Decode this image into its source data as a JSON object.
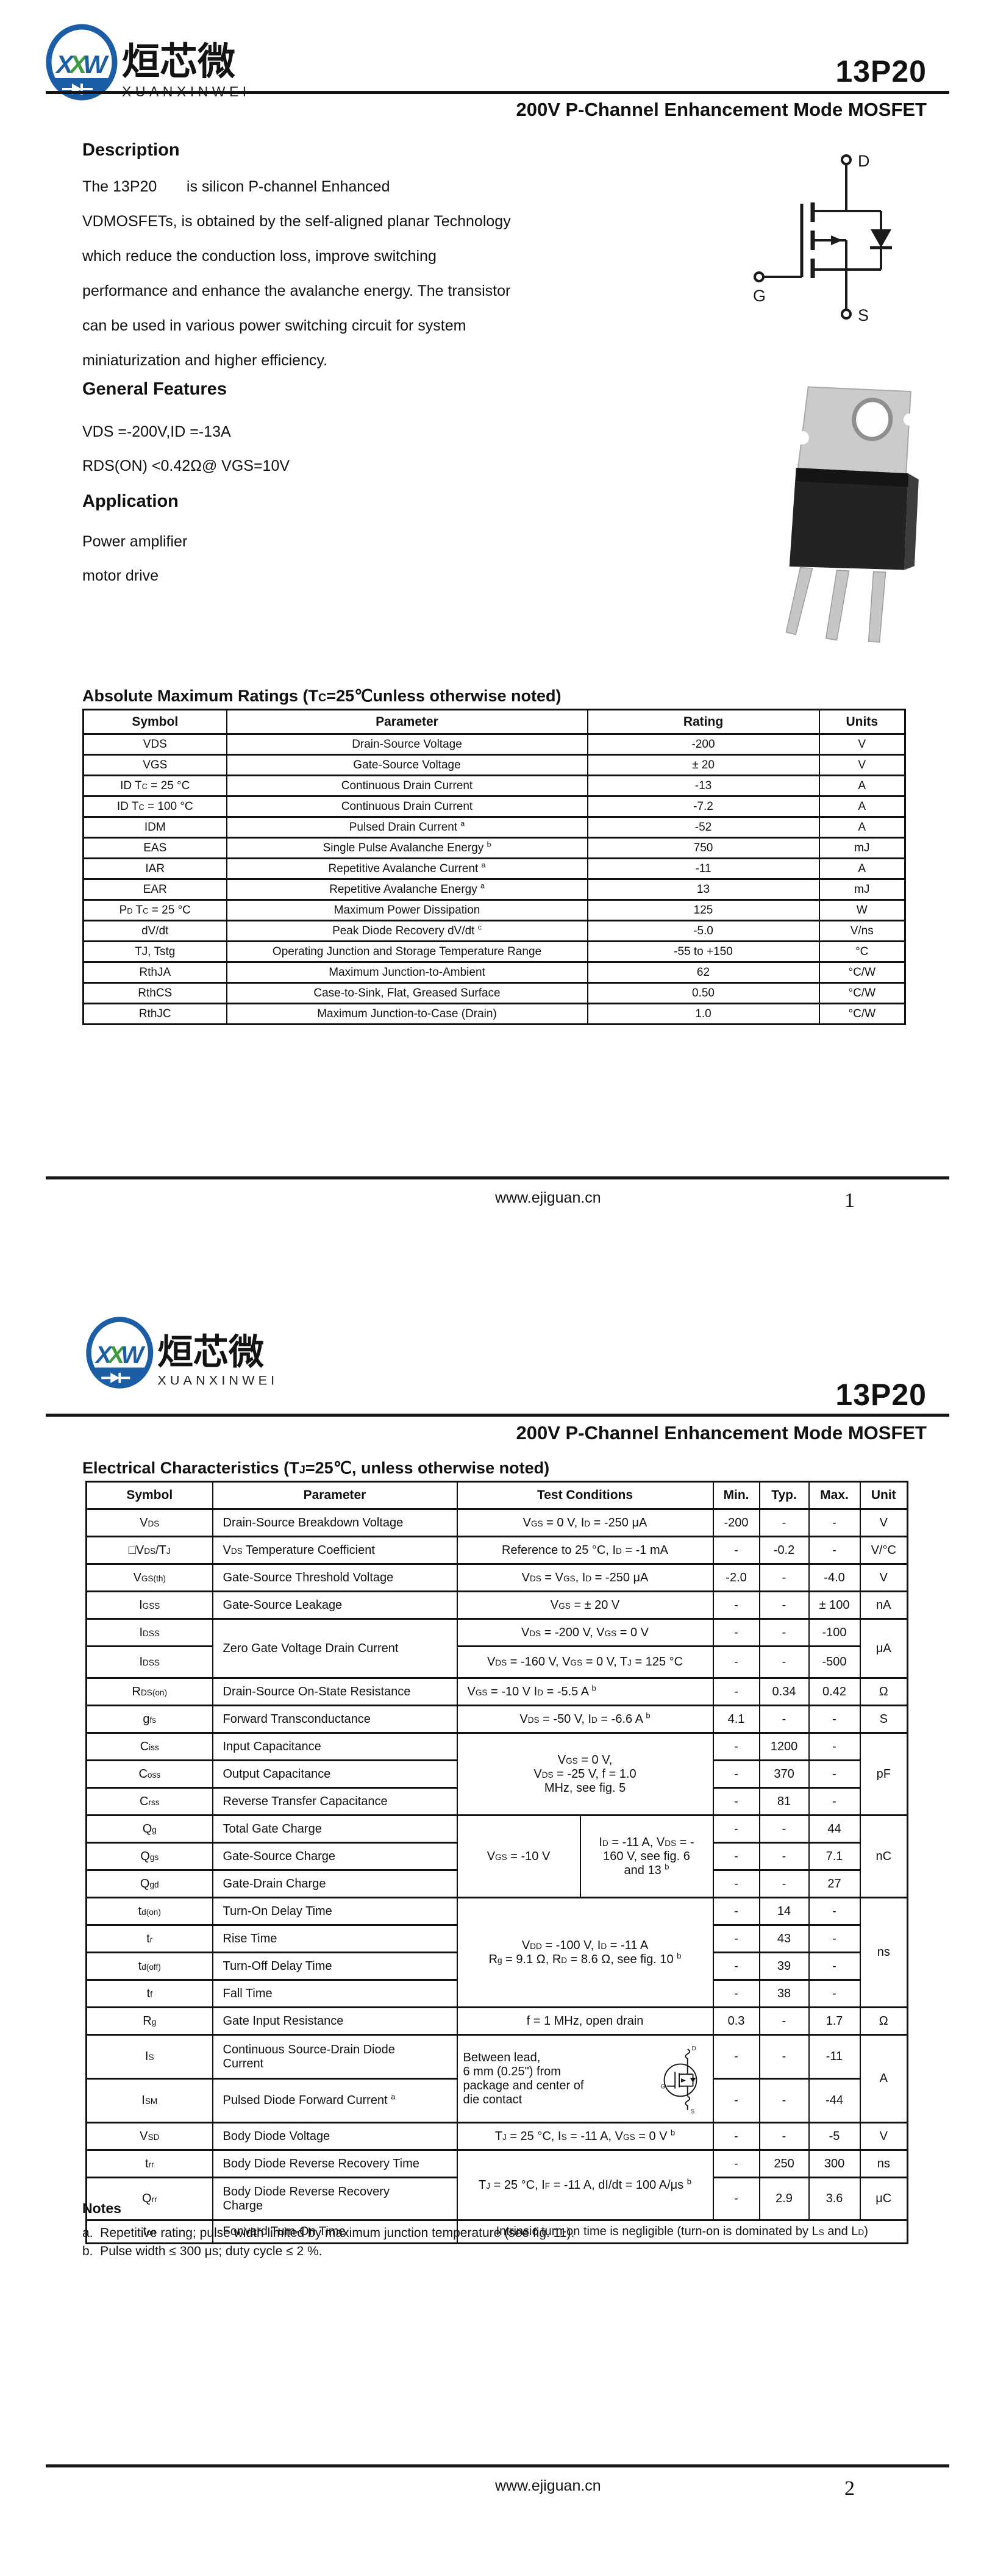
{
  "brand": {
    "m1": "X",
    "m2": "X",
    "m3": "W",
    "logo_cn": "烜芯微",
    "logo_en": "XUANXINWEI",
    "part": "13P20",
    "subtitle": "200V P-Channel Enhancement Mode MOSFET",
    "blue": "#1b5ea6",
    "green": "#3f9b41"
  },
  "footer": {
    "site": "www.ejiguan.cn",
    "p1": "1",
    "p2": "2"
  },
  "p1": {
    "desc_title": "Description",
    "desc_body": "The 13P20       is silicon P-channel Enhanced\nVDMOSFETs, is obtained by the self-aligned planar Technology\nwhich reduce the conduction loss, improve switching\nperformance and enhance the avalanche energy. The transistor\ncan be used in various power switching circuit for system\nminiaturization and higher efficiency.",
    "feat_title": "General Features",
    "feat1": "VDS =-200V,ID =-13A",
    "feat2": "RDS(ON) <0.42Ω@ VGS=10V",
    "app_title": "Application",
    "app1": "Power amplifier",
    "app2": "motor drive",
    "sym": {
      "d": "D",
      "g": "G",
      "s": "S"
    },
    "abs_title": "Absolute Maximum Ratings (T~C~=25℃unless otherwise noted)",
    "abs_headers": [
      "Symbol",
      "Parameter",
      "Rating",
      "Units"
    ],
    "abs_rows": [
      {
        "sym": "VDS",
        "param": "Drain-Source Voltage",
        "rating": "-200",
        "units": "V"
      },
      {
        "sym": "VGS",
        "param": "Gate-Source Voltage",
        "rating": "± 20",
        "units": "V"
      },
      {
        "sym": "ID T~C~ = 25 °C",
        "param": "Continuous Drain Current",
        "rating": "-13",
        "units": "A"
      },
      {
        "sym": "ID T~C~ = 100 °C",
        "param": "Continuous Drain Current",
        "rating": "-7.2",
        "units": "A"
      },
      {
        "sym": "IDM",
        "param": "Pulsed Drain Current ^a^",
        "rating": "-52",
        "units": "A"
      },
      {
        "sym": "EAS",
        "param": "Single Pulse Avalanche Energy ^b^",
        "rating": "750",
        "units": "mJ"
      },
      {
        "sym": "IAR",
        "param": "Repetitive Avalanche Current ^a^",
        "rating": "-11",
        "units": "A"
      },
      {
        "sym": "EAR",
        "param": "Repetitive Avalanche Energy ^a^",
        "rating": "13",
        "units": "mJ"
      },
      {
        "sym": "P~D~ T~C~ = 25 °C",
        "param": "Maximum Power Dissipation",
        "rating": "125",
        "units": "W"
      },
      {
        "sym": "dV/dt",
        "param": "Peak Diode Recovery dV/dt ^c^",
        "rating": "-5.0",
        "units": "V/ns"
      },
      {
        "sym": "TJ, Tstg",
        "param": "Operating Junction and Storage Temperature Range",
        "rating": "-55 to +150",
        "units": "°C"
      },
      {
        "sym": "RthJA",
        "param": "Maximum Junction-to-Ambient",
        "rating": "62",
        "units": "°C/W"
      },
      {
        "sym": "RthCS",
        "param": "Case-to-Sink, Flat, Greased Surface",
        "rating": "0.50",
        "units": "°C/W"
      },
      {
        "sym": "RthJC",
        "param": "Maximum Junction-to-Case (Drain)",
        "rating": "1.0",
        "units": "°C/W"
      }
    ]
  },
  "p2": {
    "elec_title": "Electrical Characteristics (T~J~=25℃, unless otherwise noted)",
    "headers": [
      "Symbol",
      "Parameter",
      "Test Conditions",
      "Min.",
      "Typ.",
      "Max.",
      "Unit"
    ],
    "rows": [
      {
        "sym": "V~DS~",
        "param": "Drain-Source Breakdown Voltage",
        "cond": "V~GS~ = 0 V, I~D~ = -250 μA",
        "min": "-200",
        "typ": "-",
        "max": "-",
        "unit": "V"
      },
      {
        "sym": "□V~DS~/T~J~",
        "param": "V~DS~ Temperature Coefficient",
        "cond": "Reference to 25 °C, I~D~ = -1 mA",
        "min": "-",
        "typ": "-0.2",
        "max": "-",
        "unit": "V/°C"
      },
      {
        "sym": "V~GS(th)~",
        "param": "Gate-Source Threshold Voltage",
        "cond": "V~DS~ = V~GS~, I~D~ = -250 μA",
        "min": "-2.0",
        "typ": "-",
        "max": "-4.0",
        "unit": "V"
      },
      {
        "sym": "I~GSS~",
        "param": "Gate-Source Leakage",
        "cond": "V~GS~ = ± 20 V",
        "min": "-",
        "typ": "-",
        "max": "± 100",
        "unit": "nA"
      },
      {
        "sym": "I~DSS~",
        "param": "Zero Gate Voltage Drain Current",
        "cond": "V~DS~ = -200 V, V~GS~ = 0 V",
        "min": "-",
        "typ": "-",
        "max": "-100",
        "unit": "μA"
      },
      {
        "sym": "I~DSS~",
        "cond": "V~DS~ = -160 V, V~GS~ = 0 V, T~J~ = 125 °C",
        "min": "-",
        "typ": "-",
        "max": "-500"
      },
      {
        "sym": "R~DS(on)~",
        "param": "Drain-Source On-State Resistance",
        "cond": "V~GS~ = -10 V I~D~ = -5.5 A ^b^",
        "min": "-",
        "typ": "0.34",
        "max": "0.42",
        "unit": "Ω"
      },
      {
        "sym": "g~fs~",
        "param": "Forward Transconductance",
        "cond": "V~DS~ = -50 V, I~D~ = -6.6 A ^b^",
        "min": "4.1",
        "typ": "-",
        "max": "-",
        "unit": "S"
      },
      {
        "sym": "C~iss~",
        "param": "Input Capacitance",
        "min": "-",
        "typ": "1200",
        "max": "-",
        "unit": "pF"
      },
      {
        "sym": "C~oss~",
        "param": "Output Capacitance",
        "min": "-",
        "typ": "370",
        "max": "-"
      },
      {
        "sym": "C~rss~",
        "param": "Reverse Transfer Capacitance",
        "min": "-",
        "typ": "81",
        "max": "-"
      },
      {
        "sym": "Q~g~",
        "param": "Total Gate Charge",
        "min": "-",
        "typ": "-",
        "max": "44",
        "unit": "nC"
      },
      {
        "sym": "Q~gs~",
        "param": "Gate-Source Charge",
        "min": "-",
        "typ": "-",
        "max": "7.1"
      },
      {
        "sym": "Q~gd~",
        "param": "Gate-Drain Charge",
        "min": "-",
        "typ": "-",
        "max": "27"
      },
      {
        "sym": "t~d(on)~",
        "param": "Turn-On Delay Time",
        "min": "-",
        "typ": "14",
        "max": "-",
        "unit": "ns"
      },
      {
        "sym": "t~r~",
        "param": "Rise Time",
        "min": "-",
        "typ": "43",
        "max": "-"
      },
      {
        "sym": "t~d(off)~",
        "param": "Turn-Off Delay Time",
        "min": "-",
        "typ": "39",
        "max": "-"
      },
      {
        "sym": "t~f~",
        "param": "Fall Time",
        "min": "-",
        "typ": "38",
        "max": "-"
      },
      {
        "sym": "R~g~",
        "param": "Gate Input Resistance",
        "cond": "f = 1 MHz, open drain",
        "min": "0.3",
        "typ": "-",
        "max": "1.7",
        "unit": "Ω"
      },
      {
        "sym": "I~S~",
        "param": "Continuous Source-Drain Diode\nCurrent",
        "min": "-",
        "typ": "-",
        "max": "-11",
        "unit": "A"
      },
      {
        "sym": "I~SM~",
        "param": "Pulsed Diode Forward Current ^a^",
        "min": "-",
        "typ": "-",
        "max": "-44"
      },
      {
        "sym": "V~SD~",
        "param": "Body Diode Voltage",
        "cond": "T~J~ = 25 °C, I~S~ = -11 A, V~GS~ = 0 V ^b^",
        "min": "-",
        "typ": "-",
        "max": "-5",
        "unit": "V"
      },
      {
        "sym": "t~rr~",
        "param": "Body Diode Reverse Recovery Time",
        "min": "-",
        "typ": "250",
        "max": "300",
        "unit": "ns"
      },
      {
        "sym": "Q~rr~",
        "param": "Body Diode Reverse Recovery\nCharge",
        "min": "-",
        "typ": "2.9",
        "max": "3.6",
        "unit": "μC"
      },
      {
        "sym": "t~on~",
        "param": "Forward Turn-On Time"
      }
    ],
    "merged": {
      "cap_cond": "V~GS~ = 0 V,\nV~DS~ = -25 V, f = 1.0\nMHz, see fig. 5",
      "q_left": "V~GS~ = -10 V",
      "q_right": "I~D~ = -11 A, V~DS~ = -\n160 V, see fig. 6\nand 13 ^b^",
      "sw_cond": "V~DD~ = -100 V, I~D~ = -11 A\nR~g~ = 9.1 Ω, R~D~ = 8.6 Ω, see fig. 10 ^b^",
      "diode_cond": "Between lead,\n6 mm (0.25\") from\npackage and center of\ndie contact",
      "rr_cond": "T~J~ = 25 °C, I~F~ = -11 A, dI/dt = 100 A/μs ^b^",
      "ton_note": "Intrinsic turn-on time is negligible (turn-on is dominated by L~S~ and L~D~)"
    },
    "icon_sym": {
      "d": "D",
      "g": "G",
      "s": "S"
    },
    "notes_title": "Notes",
    "note_a": "a.  Repetitive rating; pulse width limited by maximum junction temperature (see fig. 11).",
    "note_b": "b.  Pulse width ≤ 300 μs; duty cycle ≤ 2 %."
  }
}
